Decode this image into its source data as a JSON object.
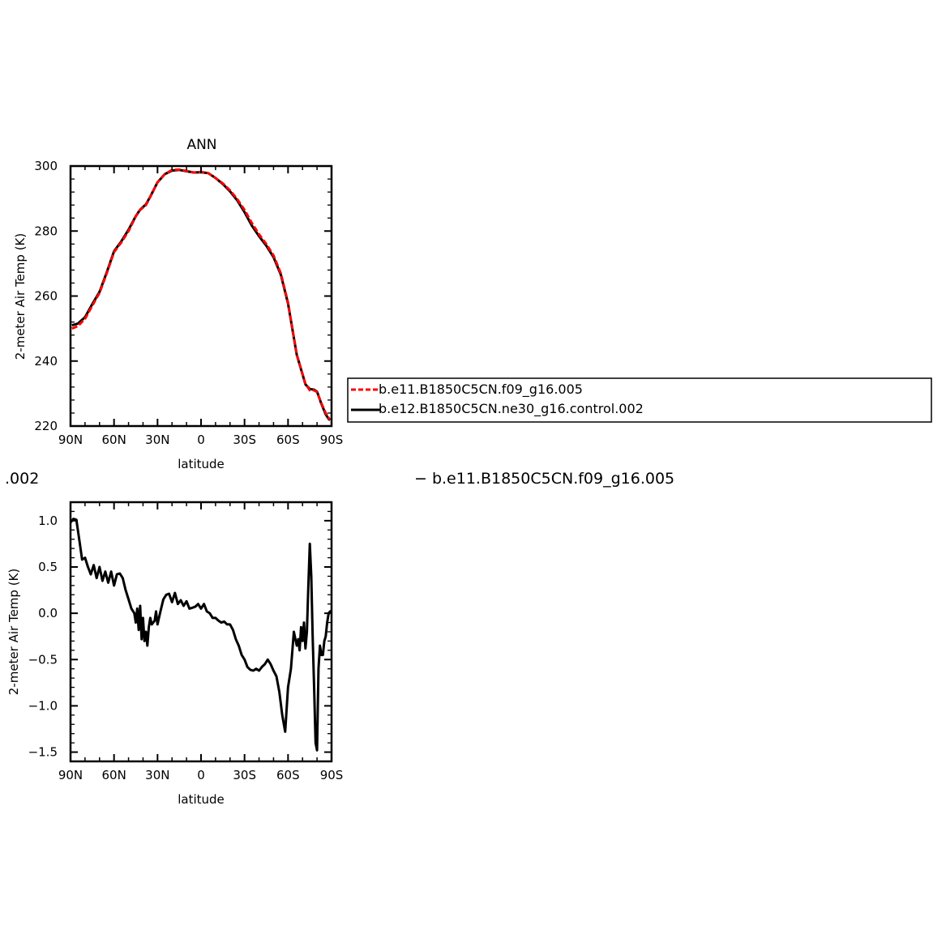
{
  "chart_data": [
    {
      "type": "line",
      "title": "ANN",
      "xlabel": "latitude",
      "ylabel": "2-meter Air Temp (K)",
      "xlim": [
        90,
        -90
      ],
      "ylim": [
        220,
        300
      ],
      "x_ticks": [
        90,
        60,
        30,
        0,
        -30,
        -60,
        -90
      ],
      "x_ticklabels": [
        "90N",
        "60N",
        "30N",
        "0",
        "30S",
        "60S",
        "90S"
      ],
      "y_ticks": [
        220,
        240,
        260,
        280,
        300
      ],
      "y_ticklabels": [
        "220",
        "240",
        "260",
        "280",
        "300"
      ],
      "grid": false,
      "legend_position": "right",
      "series": [
        {
          "name": "b.e11.B1850C5CN.f09_g16.005",
          "color": "#ff0000",
          "dash": "dashed",
          "x": [
            89,
            85,
            80,
            75,
            70,
            65,
            60,
            55,
            50,
            45,
            42,
            38,
            35,
            30,
            25,
            20,
            15,
            10,
            5,
            0,
            -5,
            -10,
            -15,
            -20,
            -25,
            -30,
            -35,
            -40,
            -45,
            -50,
            -55,
            -60,
            -63,
            -66,
            -70,
            -72,
            -75,
            -78,
            -80,
            -83,
            -86,
            -88,
            -89
          ],
          "y": [
            250.0,
            250.7,
            253.0,
            257.0,
            261.0,
            267.0,
            273.5,
            276.5,
            280.0,
            284.5,
            286.5,
            288.0,
            290.5,
            295.0,
            297.5,
            298.8,
            298.9,
            298.5,
            298.0,
            298.2,
            297.8,
            296.3,
            294.7,
            292.5,
            289.8,
            286.5,
            282.5,
            279.0,
            276.0,
            272.5,
            267.0,
            258.0,
            250.0,
            242.0,
            236.0,
            233.0,
            231.0,
            231.0,
            230.5,
            227.0,
            224.0,
            222.5,
            222.0
          ]
        },
        {
          "name": "b.e12.B1850C5CN.ne30_g16.control.002",
          "color": "#000000",
          "dash": "solid",
          "x": [
            89,
            85,
            80,
            75,
            70,
            65,
            60,
            55,
            50,
            45,
            42,
            38,
            35,
            30,
            25,
            20,
            15,
            10,
            5,
            0,
            -5,
            -10,
            -15,
            -20,
            -25,
            -30,
            -35,
            -40,
            -45,
            -50,
            -55,
            -60,
            -63,
            -66,
            -70,
            -72,
            -75,
            -78,
            -80,
            -83,
            -86,
            -88,
            -89
          ],
          "y": [
            251.0,
            251.5,
            253.5,
            257.5,
            261.3,
            267.3,
            273.8,
            276.8,
            280.4,
            284.6,
            286.6,
            288.2,
            290.6,
            295.0,
            297.5,
            298.6,
            298.8,
            298.4,
            298.0,
            298.1,
            297.8,
            296.3,
            294.5,
            292.2,
            289.4,
            285.8,
            281.7,
            278.4,
            275.5,
            272.0,
            266.6,
            257.7,
            249.8,
            241.9,
            235.9,
            232.8,
            231.4,
            231.2,
            230.6,
            226.8,
            223.6,
            222.2,
            221.8
          ]
        }
      ]
    },
    {
      "type": "line",
      "title": "",
      "xlabel": "latitude",
      "ylabel": "2-meter Air Temp (K)",
      "xlim": [
        90,
        -90
      ],
      "ylim": [
        -1.6,
        1.2
      ],
      "x_ticks": [
        90,
        60,
        30,
        0,
        -30,
        -60,
        -90
      ],
      "x_ticklabels": [
        "90N",
        "60N",
        "30N",
        "0",
        "30S",
        "60S",
        "90S"
      ],
      "y_ticks": [
        -1.5,
        -1.0,
        -0.5,
        0.0,
        0.5,
        1.0
      ],
      "y_ticklabels": [
        "−1.5",
        "−1.0",
        "−0.5",
        "0.0",
        "0.5",
        "1.0"
      ],
      "grid": false,
      "series": [
        {
          "color": "#000000",
          "dash": "solid",
          "x": [
            90,
            88,
            86,
            84,
            82,
            80,
            78,
            76,
            74,
            72,
            70,
            68,
            66,
            64,
            62,
            60,
            58,
            56,
            54,
            52,
            50,
            48,
            46,
            45,
            44,
            43,
            42,
            41,
            40,
            39,
            38,
            37,
            36,
            35,
            34,
            33,
            32,
            31,
            30,
            29,
            28,
            26,
            24,
            22,
            20,
            18,
            16,
            14,
            12,
            10,
            8,
            6,
            4,
            2,
            0,
            -2,
            -4,
            -6,
            -8,
            -10,
            -12,
            -14,
            -16,
            -18,
            -20,
            -22,
            -24,
            -26,
            -28,
            -30,
            -32,
            -34,
            -36,
            -38,
            -40,
            -42,
            -44,
            -46,
            -48,
            -50,
            -52,
            -54,
            -56,
            -58,
            -60,
            -62,
            -64,
            -66,
            -67,
            -68,
            -69,
            -70,
            -71,
            -72,
            -73,
            -74,
            -75,
            -76,
            -77,
            -78,
            -79,
            -80,
            -81,
            -82,
            -83,
            -84,
            -85,
            -86,
            -87,
            -88,
            -89,
            -90
          ],
          "y": [
            0.98,
            1.02,
            1.01,
            0.8,
            0.58,
            0.6,
            0.5,
            0.42,
            0.52,
            0.38,
            0.5,
            0.35,
            0.45,
            0.33,
            0.45,
            0.3,
            0.42,
            0.43,
            0.38,
            0.25,
            0.15,
            0.05,
            0.0,
            -0.1,
            0.05,
            -0.18,
            0.08,
            -0.28,
            -0.05,
            -0.3,
            -0.2,
            -0.35,
            -0.15,
            -0.05,
            -0.12,
            -0.1,
            -0.08,
            0.02,
            -0.12,
            -0.05,
            0.02,
            0.15,
            0.2,
            0.21,
            0.12,
            0.22,
            0.1,
            0.14,
            0.08,
            0.13,
            0.05,
            0.06,
            0.07,
            0.1,
            0.05,
            0.1,
            0.02,
            0.0,
            -0.05,
            -0.05,
            -0.08,
            -0.1,
            -0.09,
            -0.12,
            -0.12,
            -0.18,
            -0.28,
            -0.35,
            -0.45,
            -0.5,
            -0.58,
            -0.61,
            -0.62,
            -0.6,
            -0.62,
            -0.58,
            -0.55,
            -0.5,
            -0.55,
            -0.62,
            -0.68,
            -0.85,
            -1.1,
            -1.28,
            -0.8,
            -0.6,
            -0.2,
            -0.35,
            -0.28,
            -0.4,
            -0.15,
            -0.3,
            -0.1,
            -0.38,
            -0.2,
            0.3,
            0.75,
            0.4,
            -0.25,
            -0.8,
            -1.4,
            -1.48,
            -0.6,
            -0.35,
            -0.45,
            -0.45,
            -0.3,
            -0.25,
            -0.1,
            0.0,
            0.02,
            0.0
          ]
        }
      ]
    }
  ],
  "legend": {
    "entries": [
      {
        "label": "b.e11.B1850C5CN.f09_g16.005",
        "color": "#ff0000",
        "dash": "dashed"
      },
      {
        "label": "b.e12.B1850C5CN.ne30_g16.control.002",
        "color": "#000000",
        "dash": "solid"
      }
    ]
  },
  "clipped_title_left": ".002",
  "clipped_title_right": "− b.e11.B1850C5CN.f09_g16.005"
}
